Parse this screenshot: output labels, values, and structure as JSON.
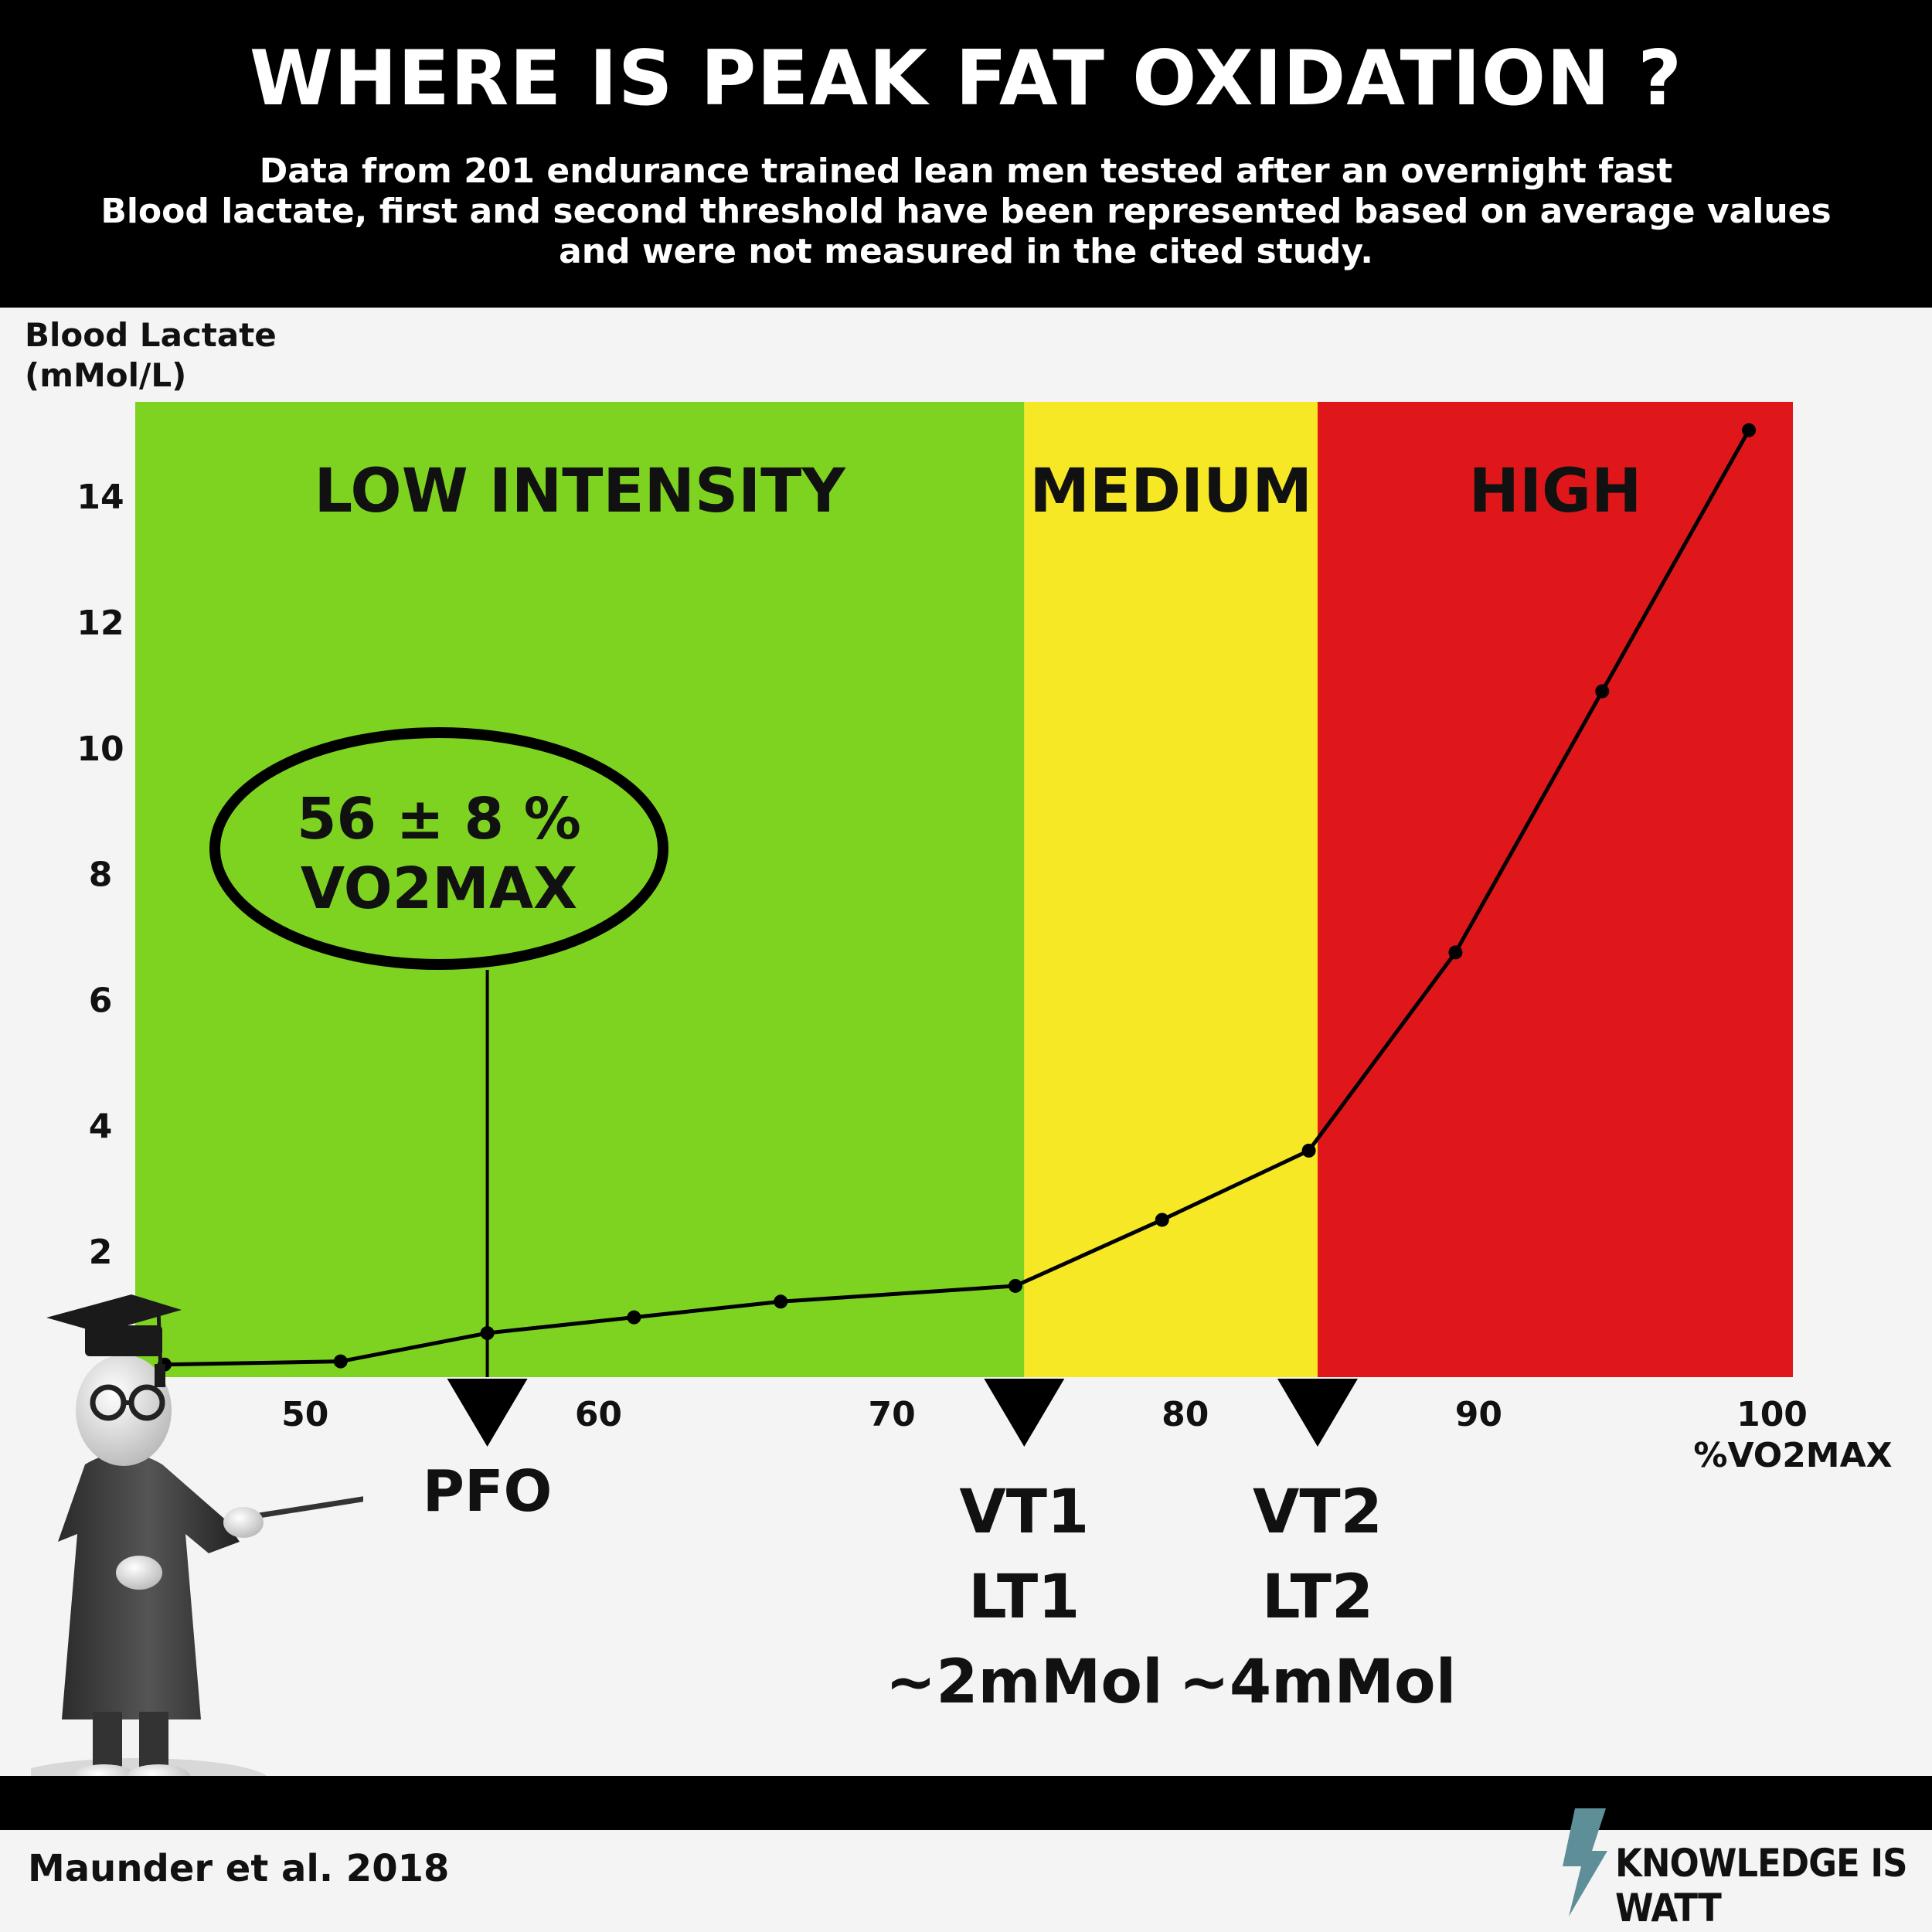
{
  "header": {
    "title": "WHERE IS PEAK FAT OXIDATION ?",
    "subtitle_lines": [
      "Data from 201 endurance trained lean men tested after an overnight fast",
      "Blood lactate, first and second threshold have been represented based on average values",
      "and were not measured in the cited study."
    ]
  },
  "colors": {
    "low": "#7ed321",
    "medium": "#f7e825",
    "high": "#e0171a",
    "line": "#000000",
    "background": "#f4f4f4"
  },
  "chart_data": {
    "type": "line",
    "ylabel_lines": [
      "Blood Lactate",
      "(mMol/L)"
    ],
    "xlabel": "%VO2MAX",
    "ylim": [
      0,
      15.5
    ],
    "xlim": [
      44,
      100.5
    ],
    "y_ticks": [
      "2",
      "4",
      "6",
      "8",
      "10",
      "12",
      "14"
    ],
    "x_ticks": [
      "50",
      "60",
      "70",
      "80",
      "90",
      "100"
    ],
    "series": [
      {
        "x": [
          45,
          51,
          56,
          61,
          66,
          74,
          79,
          84,
          89,
          94,
          99
        ],
        "y": [
          0.2,
          0.25,
          0.7,
          0.95,
          1.2,
          1.45,
          2.5,
          3.6,
          6.75,
          10.9,
          15.05
        ]
      }
    ],
    "zones": [
      {
        "label": "LOW INTENSITY",
        "from": 44,
        "to": 74.3
      },
      {
        "label": "MEDIUM",
        "from": 74.3,
        "to": 84.3
      },
      {
        "label": "HIGH",
        "from": 84.3,
        "to": 100.5
      }
    ],
    "markers": [
      {
        "x": 56,
        "lines": [
          "PFO"
        ]
      },
      {
        "x": 74.3,
        "lines": [
          "VT1",
          "LT1",
          "~2mMol"
        ]
      },
      {
        "x": 84.3,
        "lines": [
          "VT2",
          "LT2",
          "~4mMol"
        ]
      }
    ],
    "callout": {
      "x": 56,
      "lines": [
        "56 ± 8 %",
        "VO2MAX"
      ]
    }
  },
  "footer": {
    "citation": "Maunder et al. 2018",
    "brand": "KNOWLEDGE IS WATT"
  },
  "icons": [
    "graduate-figure-icon",
    "lightning-bolt-icon"
  ]
}
